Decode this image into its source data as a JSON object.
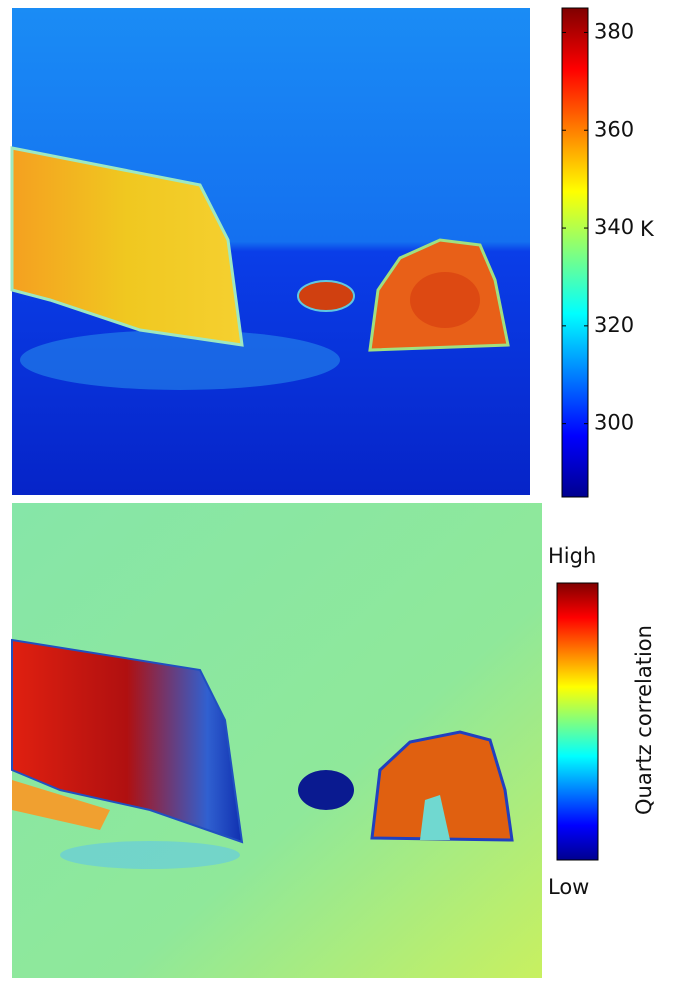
{
  "top_panel": {
    "colorbar": {
      "lim": [
        285,
        385
      ],
      "ticks": [
        300,
        320,
        340,
        360,
        380
      ],
      "unit": "K"
    }
  },
  "bottom_panel": {
    "colorbar": {
      "high_label": "High",
      "low_label": "Low",
      "title": "Quartz correlation"
    }
  }
}
